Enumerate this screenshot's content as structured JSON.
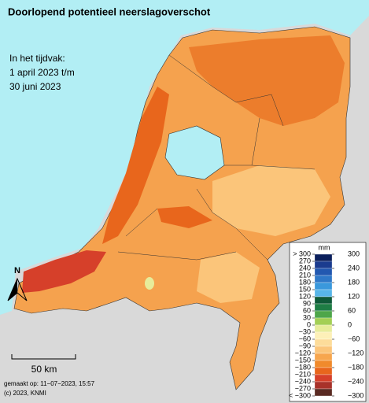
{
  "title": "Doorlopend potentieel neerslagoverschot",
  "period": [
    "In het tijdvak:",
    "1 april 2023 t/m",
    "30 juni 2023"
  ],
  "legend": {
    "unit": "mm",
    "left_labels": [
      "> 300",
      "270",
      "240",
      "210",
      "180",
      "150",
      "120",
      "90",
      "60",
      "30",
      "0",
      "−30",
      "−60",
      "−90",
      "−120",
      "−150",
      "−180",
      "−210",
      "−240",
      "−270",
      "< −300"
    ],
    "right_labels": [
      "300",
      "240",
      "180",
      "120",
      "60",
      "0",
      "−60",
      "−120",
      "−180",
      "−240",
      "−300"
    ],
    "colors": [
      "#0b1f5c",
      "#1b3c8f",
      "#2258b0",
      "#2f78c8",
      "#3a98dc",
      "#58b6e8",
      "#0f5a38",
      "#1e7d45",
      "#4ea64a",
      "#a3cf55",
      "#e7ec9a",
      "#fdf0b8",
      "#fddc9a",
      "#fbc57a",
      "#f7a64e",
      "#f08a2c",
      "#e8661c",
      "#d6402a",
      "#a8322a",
      "#5a2a22"
    ]
  },
  "north": "N",
  "scale": "50 km",
  "credits": [
    "gemaakt op: 11−07−2023, 15:57",
    "(c) 2023, KNMI"
  ]
}
